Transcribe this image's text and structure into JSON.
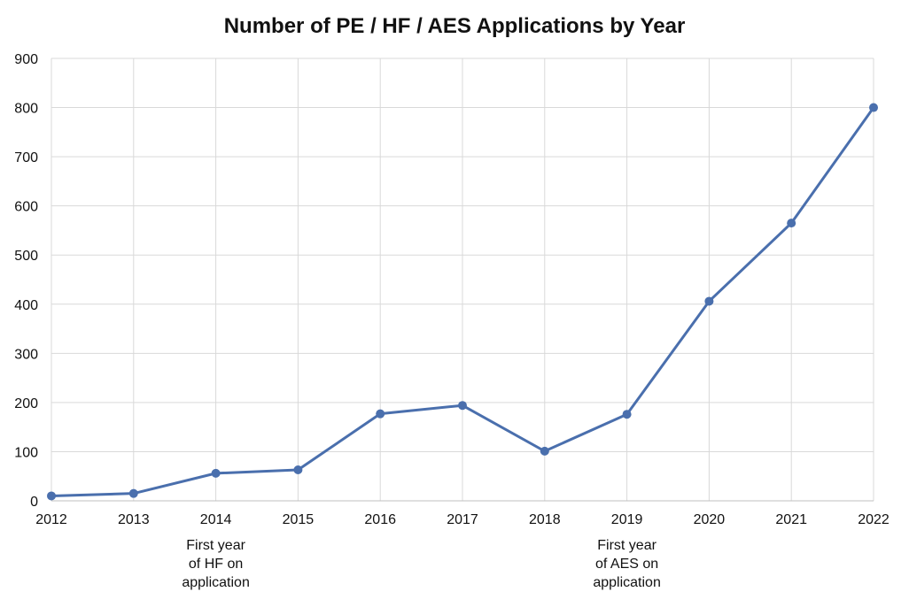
{
  "chart_data": {
    "type": "line",
    "title": "Number of PE / HF / AES Applications by Year",
    "xlabel": "",
    "ylabel": "",
    "x": [
      "2012",
      "2013",
      "2014",
      "2015",
      "2016",
      "2017",
      "2018",
      "2019",
      "2020",
      "2021",
      "2022"
    ],
    "y_ticks": [
      "0",
      "100",
      "200",
      "300",
      "400",
      "500",
      "600",
      "700",
      "800",
      "900"
    ],
    "ylim": [
      0,
      900
    ],
    "grid": true,
    "legend": "none",
    "series": [
      {
        "values": [
          10,
          15,
          56,
          63,
          177,
          194,
          101,
          176,
          406,
          565,
          800
        ],
        "color": "#4a6fad"
      }
    ],
    "annotations": [
      {
        "x": "2014",
        "lines": [
          "First year",
          "of HF on",
          "application"
        ]
      },
      {
        "x": "2019",
        "lines": [
          "First year",
          "of AES on",
          "application"
        ]
      }
    ]
  }
}
